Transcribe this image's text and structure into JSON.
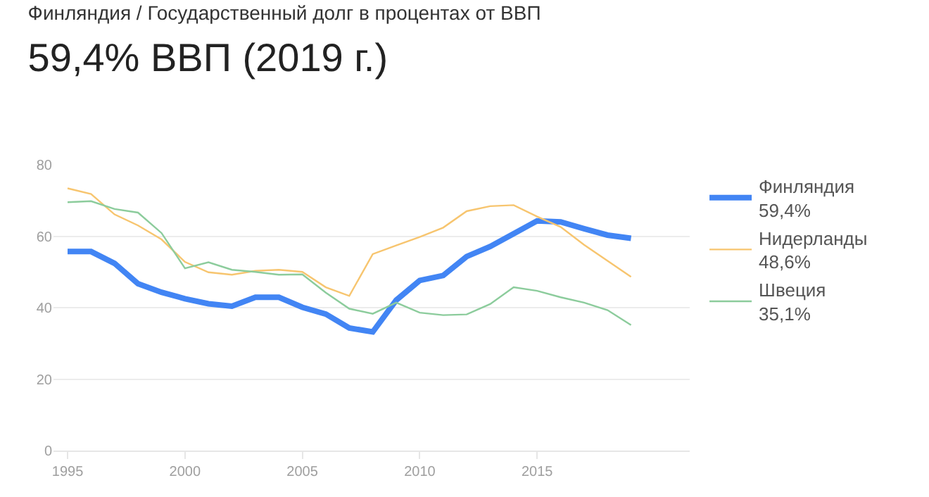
{
  "chart_data": {
    "type": "line",
    "title": "Финляндия / Государственный долг в процентах от ВВП",
    "subtitle": "59,4% ВВП (2019 г.)",
    "x": [
      1995,
      1996,
      1997,
      1998,
      1999,
      2000,
      2001,
      2002,
      2003,
      2004,
      2005,
      2006,
      2007,
      2008,
      2009,
      2010,
      2011,
      2012,
      2013,
      2014,
      2015,
      2016,
      2017,
      2018,
      2019
    ],
    "series": [
      {
        "name": "Финляндия",
        "color": "#4285f4",
        "values": [
          55.7,
          55.7,
          52.4,
          46.7,
          44.3,
          42.5,
          41.1,
          40.4,
          42.9,
          42.9,
          40.1,
          38.2,
          34.3,
          33.2,
          42.1,
          47.6,
          49.0,
          54.3,
          57.1,
          60.7,
          64.3,
          64.0,
          62.1,
          60.3,
          59.4
        ]
      },
      {
        "name": "Нидерланды",
        "color": "#f7c56f",
        "values": [
          73.4,
          71.8,
          66.1,
          63.0,
          59.1,
          52.8,
          49.9,
          49.2,
          50.3,
          50.6,
          50.0,
          45.7,
          43.3,
          55.0,
          57.4,
          59.8,
          62.4,
          67.0,
          68.4,
          68.7,
          65.5,
          62.6,
          57.6,
          53.1,
          48.6
        ]
      },
      {
        "name": "Швеция",
        "color": "#8ccc9c",
        "values": [
          69.5,
          69.8,
          67.6,
          66.6,
          60.9,
          51.0,
          52.7,
          50.6,
          50.0,
          49.2,
          49.3,
          44.2,
          39.7,
          38.3,
          41.4,
          38.6,
          37.9,
          38.1,
          41.0,
          45.7,
          44.7,
          42.9,
          41.4,
          39.3,
          35.1
        ]
      }
    ],
    "annotations": [
      "59,4%",
      "48,6%",
      "35,1%"
    ],
    "xlim": [
      1994.4,
      2021.5
    ],
    "ylim": [
      0,
      80
    ],
    "xticks": [
      1995,
      2000,
      2005,
      2010,
      2015
    ],
    "yticks": [
      0,
      20,
      40,
      60,
      80
    ],
    "grid": "y",
    "legend": "right"
  }
}
